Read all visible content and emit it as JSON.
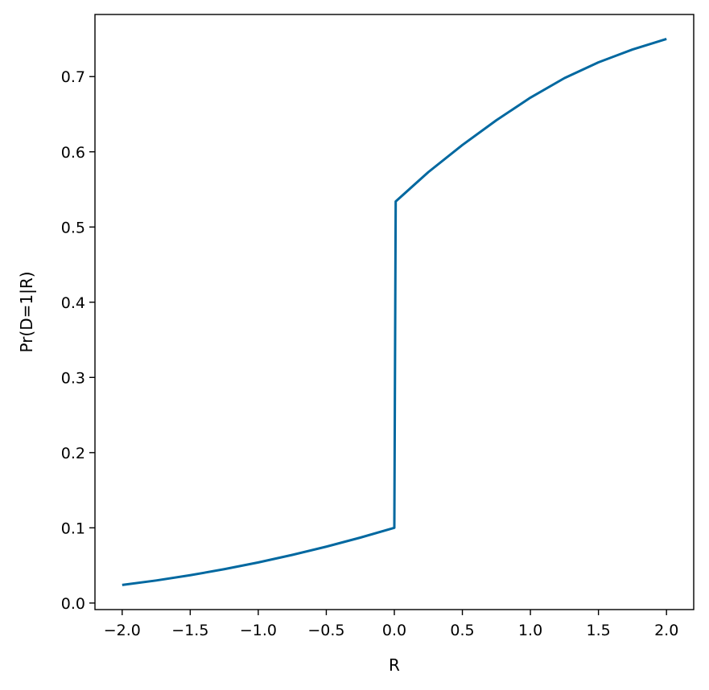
{
  "chart_data": {
    "type": "line",
    "title": "",
    "xlabel": "R",
    "ylabel": "Pr(D=1|R)",
    "xlim": [
      -2.2,
      2.2
    ],
    "ylim": [
      -0.0087,
      0.7826
    ],
    "grid": false,
    "x_ticks": [
      -2.0,
      -1.5,
      -1.0,
      -0.5,
      0.0,
      0.5,
      1.0,
      1.5,
      2.0
    ],
    "x_tick_labels": [
      "−2.0",
      "−1.5",
      "−1.0",
      "−0.5",
      "0.0",
      "0.5",
      "1.0",
      "1.5",
      "2.0"
    ],
    "y_ticks": [
      0.0,
      0.1,
      0.2,
      0.3,
      0.4,
      0.5,
      0.6,
      0.7
    ],
    "y_tick_labels": [
      "0.0",
      "0.1",
      "0.2",
      "0.3",
      "0.4",
      "0.5",
      "0.6",
      "0.7"
    ],
    "line_color": "#0068a0",
    "series": [
      {
        "x": [
          -2.0,
          -1.75,
          -1.5,
          -1.25,
          -1.0,
          -0.75,
          -0.5,
          -0.25,
          0.0,
          0.01,
          0.25,
          0.5,
          0.75,
          1.0,
          1.25,
          1.5,
          1.75,
          2.0
        ],
        "values": [
          0.024,
          0.03,
          0.037,
          0.045,
          0.054,
          0.064,
          0.075,
          0.087,
          0.1,
          0.534,
          0.573,
          0.609,
          0.642,
          0.672,
          0.698,
          0.719,
          0.736,
          0.75
        ]
      }
    ]
  }
}
